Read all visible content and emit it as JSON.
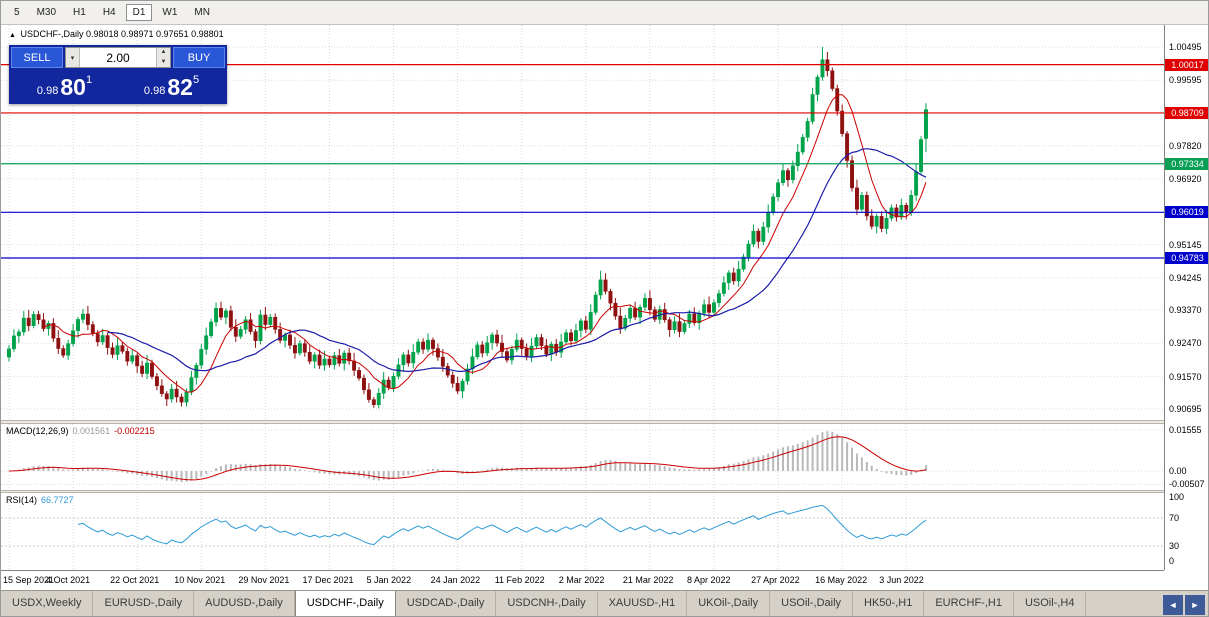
{
  "toolbar": {
    "timeframes": [
      "5",
      "M30",
      "H1",
      "H4",
      "D1",
      "W1",
      "MN"
    ],
    "active": "D1"
  },
  "chart_header": {
    "title": "USDCHF-,Daily",
    "ohlc": "0.98018 0.98971 0.97651 0.98801"
  },
  "trade_panel": {
    "sell_label": "SELL",
    "buy_label": "BUY",
    "volume": "2.00",
    "sell_price": {
      "small": "0.98",
      "big": "80",
      "sup": "1"
    },
    "buy_price": {
      "small": "0.98",
      "big": "82",
      "sup": "5"
    }
  },
  "macd": {
    "label": "MACD(12,26,9)",
    "value1": "0.001561",
    "value2": "-0.002215",
    "axis": [
      "0.01555",
      "0.00",
      "-0.00507"
    ]
  },
  "rsi": {
    "label": "RSI(14)",
    "value": "66.7727",
    "axis": [
      "100",
      "70",
      "30",
      "0"
    ],
    "levels": [
      70,
      30
    ]
  },
  "tabs": {
    "items": [
      "USDX,Weekly",
      "EURUSD-,Daily",
      "AUDUSD-,Daily",
      "USDCHF-,Daily",
      "USDCAD-,Daily",
      "USDCNH-,Daily",
      "XAUUSD-,H1",
      "UKOil-,Daily",
      "USOil-,Daily",
      "HK50-,H1",
      "EURCHF-,H1",
      "USOil-,H4"
    ],
    "active_index": 3,
    "left_icon": "◄",
    "right_icon": "►"
  },
  "colors": {
    "candle_up": "#00a24a",
    "candle_down": "#8e1111",
    "ma_fast": "#cc0000",
    "ma_slow": "#1c1ca8",
    "macd_hist": "#b9b9b9",
    "macd_signal": "#cc0000",
    "rsi_line": "#2e9bd6",
    "grid": "#d9d9d9",
    "level_red": "#e00000",
    "level_green": "#089f54",
    "level_blue": "#0000cd"
  },
  "chart_data": {
    "type": "candlestick",
    "title": "USDCHF-,Daily",
    "y_axis_plain": [
      "1.00495",
      "0.99595",
      "0.97820",
      "0.96920",
      "0.95145",
      "0.94245",
      "0.93370",
      "0.92470",
      "0.91570",
      "0.90695"
    ],
    "levels": [
      {
        "label": "1.00017",
        "color": "#e00000"
      },
      {
        "label": "0.98709",
        "color": "#e00000"
      },
      {
        "label": "0.97334",
        "color": "#089f54"
      },
      {
        "label": "0.96019",
        "color": "#0000cd"
      },
      {
        "label": "0.94783",
        "color": "#0000cd"
      }
    ],
    "x_labels": [
      {
        "i": 0,
        "t": "15 Sep 2021"
      },
      {
        "i": 13,
        "t": "4 Oct 2021"
      },
      {
        "i": 26,
        "t": "22 Oct 2021"
      },
      {
        "i": 39,
        "t": "10 Nov 2021"
      },
      {
        "i": 52,
        "t": "29 Nov 2021"
      },
      {
        "i": 65,
        "t": "17 Dec 2021"
      },
      {
        "i": 78,
        "t": "5 Jan 2022"
      },
      {
        "i": 91,
        "t": "24 Jan 2022"
      },
      {
        "i": 104,
        "t": "11 Feb 2022"
      },
      {
        "i": 117,
        "t": "2 Mar 2022"
      },
      {
        "i": 130,
        "t": "21 Mar 2022"
      },
      {
        "i": 143,
        "t": "8 Apr 2022"
      },
      {
        "i": 156,
        "t": "27 Apr 2022"
      },
      {
        "i": 169,
        "t": "16 May 2022"
      },
      {
        "i": 182,
        "t": "3 Jun 2022"
      }
    ],
    "overlays": [
      {
        "name": "ma-fast",
        "period": 8
      },
      {
        "name": "ma-slow",
        "period": 21
      }
    ],
    "ohlc": [
      [
        0.921,
        0.92423,
        0.9198,
        0.92323
      ],
      [
        0.92323,
        0.92854,
        0.92243,
        0.92674
      ],
      [
        0.92674,
        0.92851,
        0.92484,
        0.92781
      ],
      [
        0.92781,
        0.9335,
        0.92681,
        0.93156
      ],
      [
        0.93156,
        0.93376,
        0.928,
        0.9295
      ],
      [
        0.9295,
        0.93344,
        0.9288,
        0.93254
      ],
      [
        0.93254,
        0.93354,
        0.92989,
        0.93109
      ],
      [
        0.93109,
        0.93289,
        0.92791,
        0.92871
      ],
      [
        0.92871,
        0.93082,
        0.92681,
        0.93012
      ],
      [
        0.93012,
        0.93152,
        0.9251,
        0.9261
      ],
      [
        0.9261,
        0.9283,
        0.92181,
        0.92331
      ],
      [
        0.92331,
        0.92421,
        0.92078,
        0.92148
      ],
      [
        0.92148,
        0.92565,
        0.92028,
        0.92465
      ],
      [
        0.92465,
        0.92995,
        0.92385,
        0.92815
      ],
      [
        0.92815,
        0.9319,
        0.92625,
        0.9312
      ],
      [
        0.9312,
        0.93406,
        0.9302,
        0.93266
      ],
      [
        0.93266,
        0.93486,
        0.9283,
        0.9298
      ],
      [
        0.9298,
        0.9307,
        0.92663,
        0.92733
      ],
      [
        0.92733,
        0.92833,
        0.9239,
        0.9251
      ],
      [
        0.9251,
        0.92864,
        0.9243,
        0.92684
      ],
      [
        0.92684,
        0.92754,
        0.92166,
        0.92356
      ],
      [
        0.92356,
        0.92496,
        0.9207,
        0.9217
      ],
      [
        0.9217,
        0.9263,
        0.9202,
        0.9241
      ],
      [
        0.9241,
        0.925,
        0.92185,
        0.92255
      ],
      [
        0.92255,
        0.92355,
        0.91867,
        0.91987
      ],
      [
        0.91987,
        0.9232,
        0.91907,
        0.9214
      ],
      [
        0.9214,
        0.9221,
        0.9167,
        0.9186
      ],
      [
        0.9186,
        0.92,
        0.91555,
        0.91655
      ],
      [
        0.91655,
        0.9216,
        0.91505,
        0.9194
      ],
      [
        0.9194,
        0.9203,
        0.91503,
        0.91573
      ],
      [
        0.91573,
        0.91673,
        0.91202,
        0.91322
      ],
      [
        0.91322,
        0.91502,
        0.9103,
        0.9111
      ],
      [
        0.9111,
        0.9118,
        0.90775,
        0.90965
      ],
      [
        0.90965,
        0.91374,
        0.90865,
        0.91234
      ],
      [
        0.91234,
        0.91454,
        0.9087,
        0.9102
      ],
      [
        0.9102,
        0.9111,
        0.9076,
        0.9088
      ],
      [
        0.9088,
        0.9125,
        0.9076,
        0.9115
      ],
      [
        0.9115,
        0.91725,
        0.9107,
        0.91545
      ],
      [
        0.91545,
        0.9195,
        0.91355,
        0.9188
      ],
      [
        0.9188,
        0.9245,
        0.9178,
        0.9231
      ],
      [
        0.9231,
        0.929,
        0.9216,
        0.9268
      ],
      [
        0.9268,
        0.9314,
        0.9261,
        0.9305
      ],
      [
        0.9305,
        0.9358,
        0.9293,
        0.9342
      ],
      [
        0.9342,
        0.936,
        0.931,
        0.9318
      ],
      [
        0.9318,
        0.9342,
        0.9299,
        0.9335
      ],
      [
        0.9335,
        0.9349,
        0.92805,
        0.92905
      ],
      [
        0.92905,
        0.93125,
        0.9251,
        0.9266
      ],
      [
        0.9266,
        0.9294,
        0.9259,
        0.9285
      ],
      [
        0.9285,
        0.9321,
        0.9273,
        0.9311
      ],
      [
        0.9311,
        0.9329,
        0.9271,
        0.9279
      ],
      [
        0.9279,
        0.9286,
        0.92354,
        0.92544
      ],
      [
        0.92544,
        0.9338,
        0.92444,
        0.9324
      ],
      [
        0.9324,
        0.9346,
        0.9283,
        0.9298
      ],
      [
        0.9298,
        0.9327,
        0.9291,
        0.9318
      ],
      [
        0.9318,
        0.9328,
        0.9273,
        0.9285
      ],
      [
        0.9285,
        0.9303,
        0.9247,
        0.9255
      ],
      [
        0.9255,
        0.9277,
        0.9236,
        0.927
      ],
      [
        0.927,
        0.9284,
        0.9232,
        0.9242
      ],
      [
        0.9242,
        0.9264,
        0.9206,
        0.9221
      ],
      [
        0.9221,
        0.92555,
        0.9214,
        0.92465
      ],
      [
        0.92465,
        0.92565,
        0.9211,
        0.9223
      ],
      [
        0.9223,
        0.9241,
        0.91905,
        0.91985
      ],
      [
        0.91985,
        0.9223,
        0.91795,
        0.9216
      ],
      [
        0.9216,
        0.923,
        0.9178,
        0.9188
      ],
      [
        0.9188,
        0.9227,
        0.9173,
        0.9205
      ],
      [
        0.9205,
        0.9214,
        0.9182,
        0.9189
      ],
      [
        0.9189,
        0.9224,
        0.9177,
        0.9214
      ],
      [
        0.9214,
        0.9232,
        0.9185,
        0.9193
      ],
      [
        0.9193,
        0.9228,
        0.9174,
        0.9221
      ],
      [
        0.9221,
        0.9235,
        0.91895,
        0.91995
      ],
      [
        0.91995,
        0.92215,
        0.9159,
        0.9174
      ],
      [
        0.9174,
        0.9183,
        0.9146,
        0.9153
      ],
      [
        0.9153,
        0.9163,
        0.91095,
        0.91215
      ],
      [
        0.91215,
        0.91395,
        0.9087,
        0.9095
      ],
      [
        0.9095,
        0.9102,
        0.9073,
        0.9081
      ],
      [
        0.9081,
        0.9126,
        0.9071,
        0.9112
      ],
      [
        0.9112,
        0.917,
        0.9097,
        0.9148
      ],
      [
        0.9148,
        0.9157,
        0.912,
        0.9127
      ],
      [
        0.9127,
        0.9168,
        0.9115,
        0.9158
      ],
      [
        0.9158,
        0.9207,
        0.915,
        0.9189
      ],
      [
        0.9189,
        0.9223,
        0.917,
        0.9216
      ],
      [
        0.9216,
        0.923,
        0.9184,
        0.9194
      ],
      [
        0.9194,
        0.9245,
        0.9179,
        0.9223
      ],
      [
        0.9223,
        0.926,
        0.9216,
        0.9251
      ],
      [
        0.9251,
        0.9261,
        0.9219,
        0.9231
      ],
      [
        0.9231,
        0.9274,
        0.9223,
        0.9256
      ],
      [
        0.9256,
        0.9263,
        0.9214,
        0.9233
      ],
      [
        0.9233,
        0.9247,
        0.92,
        0.921
      ],
      [
        0.921,
        0.9232,
        0.917,
        0.9185
      ],
      [
        0.9185,
        0.9194,
        0.9154,
        0.9161
      ],
      [
        0.9161,
        0.9171,
        0.9127,
        0.9139
      ],
      [
        0.9139,
        0.9157,
        0.911,
        0.9118
      ],
      [
        0.9118,
        0.9152,
        0.9099,
        0.9145
      ],
      [
        0.9145,
        0.9192,
        0.9135,
        0.9178
      ],
      [
        0.9178,
        0.9233,
        0.9163,
        0.9211
      ],
      [
        0.9211,
        0.9252,
        0.9204,
        0.9243
      ],
      [
        0.9243,
        0.9253,
        0.9209,
        0.9221
      ],
      [
        0.9221,
        0.9267,
        0.9213,
        0.9249
      ],
      [
        0.9249,
        0.9277,
        0.923,
        0.927
      ],
      [
        0.927,
        0.9284,
        0.9238,
        0.9248
      ],
      [
        0.9248,
        0.927,
        0.921,
        0.9225
      ],
      [
        0.9225,
        0.9234,
        0.9195,
        0.9202
      ],
      [
        0.9202,
        0.9241,
        0.919,
        0.9231
      ],
      [
        0.9231,
        0.9274,
        0.9223,
        0.9256
      ],
      [
        0.9256,
        0.9263,
        0.9214,
        0.9233
      ],
      [
        0.9233,
        0.9247,
        0.9201,
        0.9211
      ],
      [
        0.9211,
        0.9262,
        0.9196,
        0.924
      ],
      [
        0.924,
        0.9272,
        0.9233,
        0.9263
      ],
      [
        0.9263,
        0.9273,
        0.9229,
        0.9241
      ],
      [
        0.9241,
        0.9259,
        0.921,
        0.9218
      ],
      [
        0.9218,
        0.9252,
        0.9199,
        0.9245
      ],
      [
        0.9245,
        0.9259,
        0.9213,
        0.9223
      ],
      [
        0.9223,
        0.9273,
        0.9208,
        0.9251
      ],
      [
        0.9251,
        0.9285,
        0.9244,
        0.9276
      ],
      [
        0.9276,
        0.9286,
        0.9242,
        0.9254
      ],
      [
        0.9254,
        0.93,
        0.9246,
        0.9282
      ],
      [
        0.9282,
        0.9315,
        0.9263,
        0.9308
      ],
      [
        0.9308,
        0.9322,
        0.9275,
        0.9285
      ],
      [
        0.9285,
        0.9353,
        0.927,
        0.9331
      ],
      [
        0.9331,
        0.9387,
        0.9324,
        0.9378
      ],
      [
        0.9378,
        0.9444,
        0.9366,
        0.9419
      ],
      [
        0.9419,
        0.9437,
        0.938,
        0.9388
      ],
      [
        0.9388,
        0.9395,
        0.9337,
        0.9356
      ],
      [
        0.9356,
        0.937,
        0.9311,
        0.9321
      ],
      [
        0.9321,
        0.9343,
        0.9273,
        0.9288
      ],
      [
        0.9288,
        0.9324,
        0.9281,
        0.9315
      ],
      [
        0.9315,
        0.9352,
        0.9303,
        0.9342
      ],
      [
        0.9342,
        0.936,
        0.931,
        0.9318
      ],
      [
        0.9318,
        0.9352,
        0.9299,
        0.9345
      ],
      [
        0.9345,
        0.9383,
        0.9335,
        0.9369
      ],
      [
        0.9369,
        0.9391,
        0.9323,
        0.9338
      ],
      [
        0.9338,
        0.9347,
        0.9305,
        0.9312
      ],
      [
        0.9312,
        0.9349,
        0.93,
        0.9339
      ],
      [
        0.9339,
        0.9357,
        0.9303,
        0.9311
      ],
      [
        0.9311,
        0.9318,
        0.9265,
        0.9284
      ],
      [
        0.9284,
        0.932,
        0.9274,
        0.9306
      ],
      [
        0.9306,
        0.9328,
        0.9264,
        0.9279
      ],
      [
        0.9279,
        0.931,
        0.9272,
        0.9301
      ],
      [
        0.9301,
        0.9337,
        0.9289,
        0.9327
      ],
      [
        0.9327,
        0.9345,
        0.9295,
        0.9303
      ],
      [
        0.9303,
        0.9336,
        0.9284,
        0.9329
      ],
      [
        0.9329,
        0.9366,
        0.9319,
        0.9352
      ],
      [
        0.9352,
        0.9374,
        0.9316,
        0.9331
      ],
      [
        0.9331,
        0.9366,
        0.9324,
        0.9357
      ],
      [
        0.9357,
        0.9392,
        0.9345,
        0.9382
      ],
      [
        0.9382,
        0.9429,
        0.9374,
        0.9411
      ],
      [
        0.9411,
        0.9445,
        0.9392,
        0.9438
      ],
      [
        0.9438,
        0.9452,
        0.9406,
        0.9416
      ],
      [
        0.9416,
        0.947,
        0.9401,
        0.9448
      ],
      [
        0.9448,
        0.949,
        0.9441,
        0.9481
      ],
      [
        0.9481,
        0.9526,
        0.9469,
        0.9516
      ],
      [
        0.9516,
        0.9569,
        0.9508,
        0.9551
      ],
      [
        0.9551,
        0.9558,
        0.9504,
        0.9523
      ],
      [
        0.9523,
        0.9576,
        0.9513,
        0.9562
      ],
      [
        0.9562,
        0.9623,
        0.9547,
        0.9601
      ],
      [
        0.9601,
        0.9653,
        0.9594,
        0.9644
      ],
      [
        0.9644,
        0.9692,
        0.9632,
        0.9682
      ],
      [
        0.9682,
        0.9733,
        0.9674,
        0.9715
      ],
      [
        0.9715,
        0.9722,
        0.9671,
        0.969
      ],
      [
        0.969,
        0.9742,
        0.968,
        0.9728
      ],
      [
        0.9728,
        0.9787,
        0.9713,
        0.9765
      ],
      [
        0.9765,
        0.9814,
        0.9758,
        0.9805
      ],
      [
        0.9805,
        0.9858,
        0.9793,
        0.9848
      ],
      [
        0.9848,
        0.9939,
        0.984,
        0.9921
      ],
      [
        0.9921,
        0.9975,
        0.9902,
        0.9968
      ],
      [
        0.9968,
        1.00495,
        0.9958,
        1.0015
      ],
      [
        1.0015,
        1.0036,
        0.997,
        0.9985
      ],
      [
        0.9985,
        0.9994,
        0.993,
        0.9937
      ],
      [
        0.9937,
        0.9947,
        0.9864,
        0.9876
      ],
      [
        0.9876,
        0.9894,
        0.9807,
        0.9815
      ],
      [
        0.9815,
        0.9822,
        0.9723,
        0.9742
      ],
      [
        0.9742,
        0.9756,
        0.9658,
        0.9668
      ],
      [
        0.9668,
        0.969,
        0.9595,
        0.961
      ],
      [
        0.961,
        0.9657,
        0.9603,
        0.9648
      ],
      [
        0.9648,
        0.9658,
        0.958,
        0.9592
      ],
      [
        0.9592,
        0.961,
        0.9556,
        0.9564
      ],
      [
        0.9564,
        0.9598,
        0.9545,
        0.9591
      ],
      [
        0.9591,
        0.9605,
        0.9548,
        0.9558
      ],
      [
        0.9558,
        0.9608,
        0.9543,
        0.9586
      ],
      [
        0.9586,
        0.9623,
        0.9579,
        0.9614
      ],
      [
        0.9614,
        0.9624,
        0.9577,
        0.9589
      ],
      [
        0.9589,
        0.9639,
        0.9581,
        0.9621
      ],
      [
        0.9621,
        0.9628,
        0.9583,
        0.9602
      ],
      [
        0.9602,
        0.9662,
        0.9592,
        0.9648
      ],
      [
        0.9648,
        0.9734,
        0.9633,
        0.9712
      ],
      [
        0.9712,
        0.9808,
        0.9705,
        0.9799
      ],
      [
        0.98018,
        0.98971,
        0.97651,
        0.98801
      ]
    ]
  }
}
